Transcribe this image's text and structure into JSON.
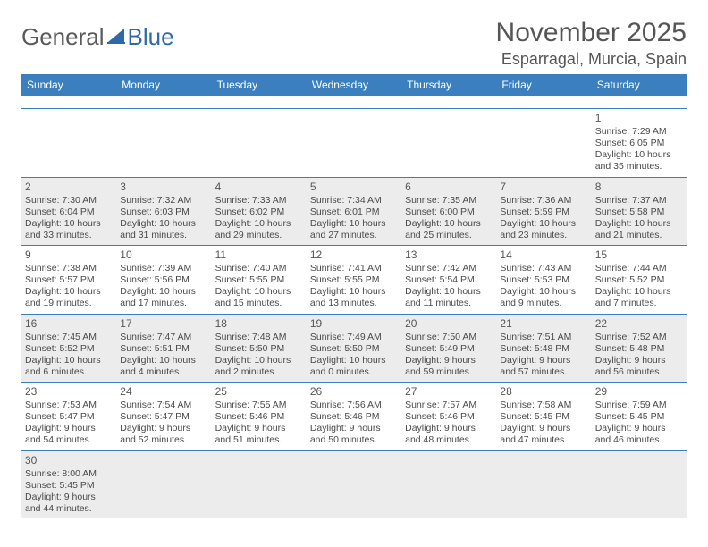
{
  "colors": {
    "header_bg": "#3b7fbf",
    "header_text": "#ffffff",
    "row_border": "#3b7fbf",
    "alt_bg": "#ececec",
    "body_text": "#4a4a4a",
    "logo_gray": "#5a5a5a",
    "logo_blue": "#2f6aa8",
    "page_bg": "#ffffff"
  },
  "typography": {
    "title_fontsize": 30,
    "location_fontsize": 18,
    "dayhead_fontsize": 12,
    "cell_fontsize": 10.5,
    "daynum_fontsize": 12
  },
  "logo": {
    "part1": "General",
    "part2": "Blue"
  },
  "title": "November 2025",
  "location": "Esparragal, Murcia, Spain",
  "dayheads": [
    "Sunday",
    "Monday",
    "Tuesday",
    "Wednesday",
    "Thursday",
    "Friday",
    "Saturday"
  ],
  "weeks": [
    [
      {
        "n": "",
        "lines": [
          "",
          "",
          "",
          ""
        ]
      },
      {
        "n": "",
        "lines": [
          "",
          "",
          "",
          ""
        ]
      },
      {
        "n": "",
        "lines": [
          "",
          "",
          "",
          ""
        ]
      },
      {
        "n": "",
        "lines": [
          "",
          "",
          "",
          ""
        ]
      },
      {
        "n": "",
        "lines": [
          "",
          "",
          "",
          ""
        ]
      },
      {
        "n": "",
        "lines": [
          "",
          "",
          "",
          ""
        ]
      },
      {
        "n": "1",
        "lines": [
          "Sunrise: 7:29 AM",
          "Sunset: 6:05 PM",
          "Daylight: 10 hours",
          "and 35 minutes."
        ]
      }
    ],
    [
      {
        "n": "2",
        "lines": [
          "Sunrise: 7:30 AM",
          "Sunset: 6:04 PM",
          "Daylight: 10 hours",
          "and 33 minutes."
        ]
      },
      {
        "n": "3",
        "lines": [
          "Sunrise: 7:32 AM",
          "Sunset: 6:03 PM",
          "Daylight: 10 hours",
          "and 31 minutes."
        ]
      },
      {
        "n": "4",
        "lines": [
          "Sunrise: 7:33 AM",
          "Sunset: 6:02 PM",
          "Daylight: 10 hours",
          "and 29 minutes."
        ]
      },
      {
        "n": "5",
        "lines": [
          "Sunrise: 7:34 AM",
          "Sunset: 6:01 PM",
          "Daylight: 10 hours",
          "and 27 minutes."
        ]
      },
      {
        "n": "6",
        "lines": [
          "Sunrise: 7:35 AM",
          "Sunset: 6:00 PM",
          "Daylight: 10 hours",
          "and 25 minutes."
        ]
      },
      {
        "n": "7",
        "lines": [
          "Sunrise: 7:36 AM",
          "Sunset: 5:59 PM",
          "Daylight: 10 hours",
          "and 23 minutes."
        ]
      },
      {
        "n": "8",
        "lines": [
          "Sunrise: 7:37 AM",
          "Sunset: 5:58 PM",
          "Daylight: 10 hours",
          "and 21 minutes."
        ]
      }
    ],
    [
      {
        "n": "9",
        "lines": [
          "Sunrise: 7:38 AM",
          "Sunset: 5:57 PM",
          "Daylight: 10 hours",
          "and 19 minutes."
        ]
      },
      {
        "n": "10",
        "lines": [
          "Sunrise: 7:39 AM",
          "Sunset: 5:56 PM",
          "Daylight: 10 hours",
          "and 17 minutes."
        ]
      },
      {
        "n": "11",
        "lines": [
          "Sunrise: 7:40 AM",
          "Sunset: 5:55 PM",
          "Daylight: 10 hours",
          "and 15 minutes."
        ]
      },
      {
        "n": "12",
        "lines": [
          "Sunrise: 7:41 AM",
          "Sunset: 5:55 PM",
          "Daylight: 10 hours",
          "and 13 minutes."
        ]
      },
      {
        "n": "13",
        "lines": [
          "Sunrise: 7:42 AM",
          "Sunset: 5:54 PM",
          "Daylight: 10 hours",
          "and 11 minutes."
        ]
      },
      {
        "n": "14",
        "lines": [
          "Sunrise: 7:43 AM",
          "Sunset: 5:53 PM",
          "Daylight: 10 hours",
          "and 9 minutes."
        ]
      },
      {
        "n": "15",
        "lines": [
          "Sunrise: 7:44 AM",
          "Sunset: 5:52 PM",
          "Daylight: 10 hours",
          "and 7 minutes."
        ]
      }
    ],
    [
      {
        "n": "16",
        "lines": [
          "Sunrise: 7:45 AM",
          "Sunset: 5:52 PM",
          "Daylight: 10 hours",
          "and 6 minutes."
        ]
      },
      {
        "n": "17",
        "lines": [
          "Sunrise: 7:47 AM",
          "Sunset: 5:51 PM",
          "Daylight: 10 hours",
          "and 4 minutes."
        ]
      },
      {
        "n": "18",
        "lines": [
          "Sunrise: 7:48 AM",
          "Sunset: 5:50 PM",
          "Daylight: 10 hours",
          "and 2 minutes."
        ]
      },
      {
        "n": "19",
        "lines": [
          "Sunrise: 7:49 AM",
          "Sunset: 5:50 PM",
          "Daylight: 10 hours",
          "and 0 minutes."
        ]
      },
      {
        "n": "20",
        "lines": [
          "Sunrise: 7:50 AM",
          "Sunset: 5:49 PM",
          "Daylight: 9 hours",
          "and 59 minutes."
        ]
      },
      {
        "n": "21",
        "lines": [
          "Sunrise: 7:51 AM",
          "Sunset: 5:48 PM",
          "Daylight: 9 hours",
          "and 57 minutes."
        ]
      },
      {
        "n": "22",
        "lines": [
          "Sunrise: 7:52 AM",
          "Sunset: 5:48 PM",
          "Daylight: 9 hours",
          "and 56 minutes."
        ]
      }
    ],
    [
      {
        "n": "23",
        "lines": [
          "Sunrise: 7:53 AM",
          "Sunset: 5:47 PM",
          "Daylight: 9 hours",
          "and 54 minutes."
        ]
      },
      {
        "n": "24",
        "lines": [
          "Sunrise: 7:54 AM",
          "Sunset: 5:47 PM",
          "Daylight: 9 hours",
          "and 52 minutes."
        ]
      },
      {
        "n": "25",
        "lines": [
          "Sunrise: 7:55 AM",
          "Sunset: 5:46 PM",
          "Daylight: 9 hours",
          "and 51 minutes."
        ]
      },
      {
        "n": "26",
        "lines": [
          "Sunrise: 7:56 AM",
          "Sunset: 5:46 PM",
          "Daylight: 9 hours",
          "and 50 minutes."
        ]
      },
      {
        "n": "27",
        "lines": [
          "Sunrise: 7:57 AM",
          "Sunset: 5:46 PM",
          "Daylight: 9 hours",
          "and 48 minutes."
        ]
      },
      {
        "n": "28",
        "lines": [
          "Sunrise: 7:58 AM",
          "Sunset: 5:45 PM",
          "Daylight: 9 hours",
          "and 47 minutes."
        ]
      },
      {
        "n": "29",
        "lines": [
          "Sunrise: 7:59 AM",
          "Sunset: 5:45 PM",
          "Daylight: 9 hours",
          "and 46 minutes."
        ]
      }
    ],
    [
      {
        "n": "30",
        "lines": [
          "Sunrise: 8:00 AM",
          "Sunset: 5:45 PM",
          "Daylight: 9 hours",
          "and 44 minutes."
        ]
      },
      {
        "n": "",
        "lines": [
          "",
          "",
          "",
          ""
        ]
      },
      {
        "n": "",
        "lines": [
          "",
          "",
          "",
          ""
        ]
      },
      {
        "n": "",
        "lines": [
          "",
          "",
          "",
          ""
        ]
      },
      {
        "n": "",
        "lines": [
          "",
          "",
          "",
          ""
        ]
      },
      {
        "n": "",
        "lines": [
          "",
          "",
          "",
          ""
        ]
      },
      {
        "n": "",
        "lines": [
          "",
          "",
          "",
          ""
        ]
      }
    ]
  ]
}
